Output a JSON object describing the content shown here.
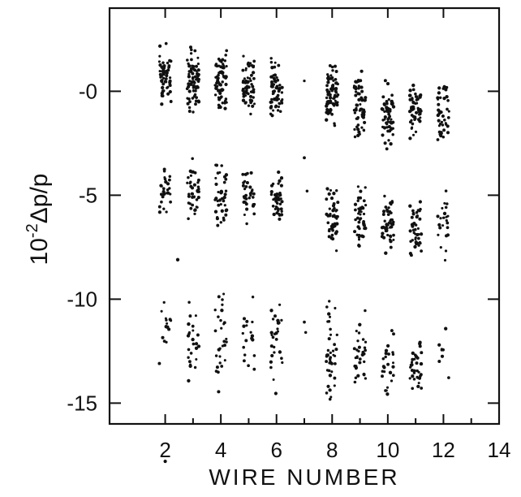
{
  "chart_data": {
    "type": "scatter",
    "title": "",
    "xlabel": "WIRE NUMBER",
    "ylabel": "10",
    "ylabel_exponent": "-2",
    "ylabel_symbol": "Δp/p",
    "xlim": [
      0,
      14
    ],
    "ylim": [
      -16,
      4
    ],
    "grid": false,
    "legend": "none",
    "marker_color": "#111111",
    "x_ticks": [
      {
        "value": 2,
        "label": "2"
      },
      {
        "value": 4,
        "label": "4"
      },
      {
        "value": 6,
        "label": "6"
      },
      {
        "value": 8,
        "label": "8"
      },
      {
        "value": 10,
        "label": "10"
      },
      {
        "value": 12,
        "label": "12"
      },
      {
        "value": 14,
        "label": "14"
      }
    ],
    "y_ticks": [
      {
        "value": 0,
        "label": "-0"
      },
      {
        "value": -5,
        "label": "-5"
      },
      {
        "value": -10,
        "label": "-10"
      },
      {
        "value": -15,
        "label": "-15"
      }
    ],
    "minor_x_ticks": [
      3,
      5,
      7,
      9,
      11,
      13
    ],
    "clusters": [
      {
        "wire": 2,
        "center": 0.7,
        "spread": 1.6,
        "count": 55
      },
      {
        "wire": 2,
        "center": -4.8,
        "spread": 1.2,
        "count": 28
      },
      {
        "wire": 2,
        "center": -11.7,
        "spread": 1.6,
        "count": 14
      },
      {
        "wire": 3,
        "center": 0.6,
        "spread": 1.7,
        "count": 70
      },
      {
        "wire": 3,
        "center": -4.7,
        "spread": 1.6,
        "count": 40
      },
      {
        "wire": 3,
        "center": -12.0,
        "spread": 2.2,
        "count": 25
      },
      {
        "wire": 4,
        "center": 0.4,
        "spread": 1.6,
        "count": 70
      },
      {
        "wire": 4,
        "center": -5.0,
        "spread": 1.6,
        "count": 40
      },
      {
        "wire": 4,
        "center": -12.0,
        "spread": 2.8,
        "count": 28
      },
      {
        "wire": 5,
        "center": 0.3,
        "spread": 1.4,
        "count": 60
      },
      {
        "wire": 5,
        "center": -5.1,
        "spread": 1.3,
        "count": 35
      },
      {
        "wire": 5,
        "center": -11.8,
        "spread": 2.2,
        "count": 18
      },
      {
        "wire": 6,
        "center": 0.1,
        "spread": 1.5,
        "count": 60
      },
      {
        "wire": 6,
        "center": -5.1,
        "spread": 1.6,
        "count": 40
      },
      {
        "wire": 6,
        "center": -12.2,
        "spread": 2.4,
        "count": 28
      },
      {
        "wire": 8,
        "center": -0.3,
        "spread": 1.6,
        "count": 75
      },
      {
        "wire": 8,
        "center": -6.0,
        "spread": 1.7,
        "count": 45
      },
      {
        "wire": 8,
        "center": -12.6,
        "spread": 2.6,
        "count": 40
      },
      {
        "wire": 9,
        "center": -0.6,
        "spread": 1.7,
        "count": 65
      },
      {
        "wire": 9,
        "center": -6.0,
        "spread": 1.8,
        "count": 45
      },
      {
        "wire": 9,
        "center": -12.5,
        "spread": 2.0,
        "count": 32
      },
      {
        "wire": 10,
        "center": -1.1,
        "spread": 1.7,
        "count": 62
      },
      {
        "wire": 10,
        "center": -6.4,
        "spread": 1.8,
        "count": 48
      },
      {
        "wire": 10,
        "center": -13.0,
        "spread": 1.8,
        "count": 26
      },
      {
        "wire": 11,
        "center": -0.9,
        "spread": 1.5,
        "count": 58
      },
      {
        "wire": 11,
        "center": -6.6,
        "spread": 1.5,
        "count": 42
      },
      {
        "wire": 11,
        "center": -13.2,
        "spread": 1.2,
        "count": 34
      },
      {
        "wire": 12,
        "center": -1.1,
        "spread": 1.7,
        "count": 42
      },
      {
        "wire": 12,
        "center": -6.4,
        "spread": 1.8,
        "count": 24
      },
      {
        "wire": 12,
        "center": -12.4,
        "spread": 1.6,
        "count": 8
      }
    ],
    "isolated_points": [
      {
        "x": 7.0,
        "y": 0.5
      },
      {
        "x": 7.0,
        "y": -3.2
      },
      {
        "x": 7.1,
        "y": -4.8
      },
      {
        "x": 7.0,
        "y": -11.1
      },
      {
        "x": 7.05,
        "y": -11.6
      },
      {
        "x": 2.45,
        "y": -8.1
      },
      {
        "x": 2.0,
        "y": -17.8
      }
    ]
  }
}
